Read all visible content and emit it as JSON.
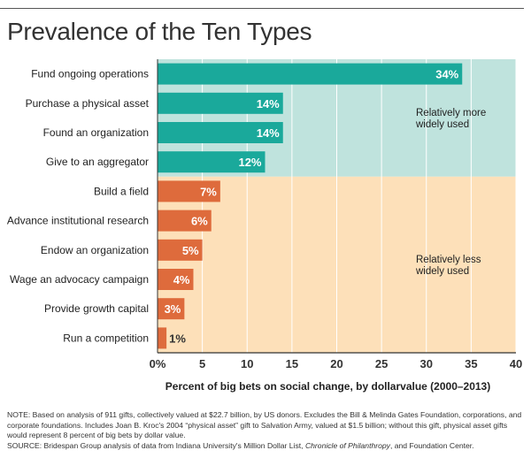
{
  "title": "Prevalence of the Ten Types",
  "chart_data": {
    "type": "bar",
    "orientation": "horizontal",
    "categories": [
      "Fund ongoing operations",
      "Purchase a physical asset",
      "Found an organization",
      "Give to an aggregator",
      "Build a field",
      "Advance institutional research",
      "Endow an organization",
      "Wage an advocacy campaign",
      "Provide growth capital",
      "Run a competition"
    ],
    "values": [
      34,
      14,
      14,
      12,
      7,
      6,
      5,
      4,
      3,
      1
    ],
    "value_labels": [
      "34%",
      "14%",
      "14%",
      "12%",
      "7%",
      "6%",
      "5%",
      "4%",
      "3%",
      "1%"
    ],
    "xlabel": "Percent of big bets on social change, by dollarvalue (2000–2013)",
    "xlim": [
      0,
      40
    ],
    "xticks": [
      "0%",
      "5",
      "10",
      "15",
      "20",
      "25",
      "30",
      "35",
      "40"
    ],
    "xtick_values": [
      0,
      5,
      10,
      15,
      20,
      25,
      30,
      35,
      40
    ],
    "grid": true,
    "groups": [
      {
        "label_lines": [
          "Relatively more",
          "widely used"
        ],
        "rows": [
          0,
          3
        ],
        "bar_color": "#1aa99b",
        "band_color": "#bfe3dd"
      },
      {
        "label_lines": [
          "Relatively less",
          "widely used"
        ],
        "rows": [
          4,
          9
        ],
        "bar_color": "#de6b3c",
        "band_color": "#fde0b9"
      }
    ]
  },
  "notes": {
    "note": "NOTE: Based on analysis of 911 gifts, collectively valued at $22.7 billion, by US donors. Excludes the Bill & Melinda Gates Foundation, corporations, and corporate foundations. Includes Joan B. Kroc's 2004 “physical asset” gift to Salvation Army, valued at $1.5 billion; without this gift, physical asset gifts would represent 8 percent of big bets by dollar value.",
    "source_before": "SOURCE: Bridespan Group analysis of data from Indiana University's Million Dollar List, ",
    "source_italic": "Chronicle of Philanthropy",
    "source_after": ", and Foundation Center."
  }
}
